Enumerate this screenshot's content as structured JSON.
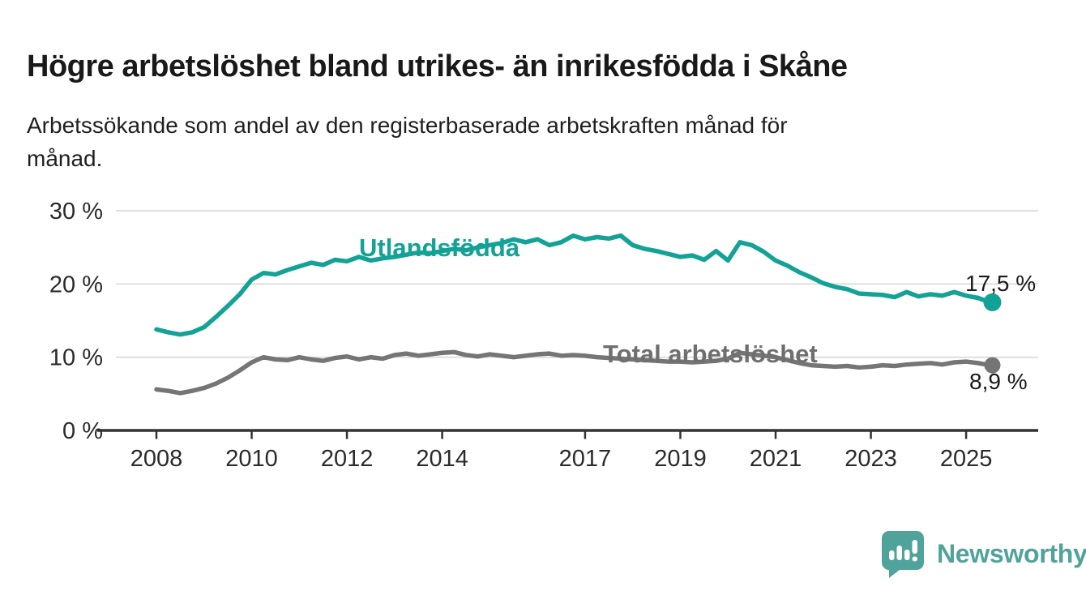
{
  "header": {
    "title": "Högre arbetslöshet bland utrikes- än inrikesfödda i Skåne",
    "subtitle": "Arbetssökande som andel av den registerbaserade arbetskraften månad för månad.",
    "subtitle_lines": [
      "Arbetssökande som andel av den registerbaserade arbetskraften månad för",
      "månad."
    ]
  },
  "colors": {
    "utlandsfodda": "#14a296",
    "total": "#757575",
    "grid": "#d9d9d9",
    "axis": "#333333",
    "tick_text": "#2b2b2b",
    "logo": "#4fa39b"
  },
  "chart_data": {
    "type": "line",
    "title": "Högre arbetslöshet bland utrikes- än inrikesfödda i Skåne",
    "subtitle": "Arbetssökande som andel av den registerbaserade arbetskraften månad för månad.",
    "xlabel": "",
    "ylabel": "",
    "ylim": [
      0,
      30
    ],
    "xlim": [
      2007.2,
      2026.3
    ],
    "grid": "horizontal",
    "legend_position": "inline-labels",
    "y_ticks": [
      {
        "value": 0,
        "label": "0 %"
      },
      {
        "value": 10,
        "label": "10 %"
      },
      {
        "value": 20,
        "label": "20 %"
      },
      {
        "value": 30,
        "label": "30 %"
      }
    ],
    "x_ticks": [
      {
        "value": 2008,
        "label": "2008"
      },
      {
        "value": 2010,
        "label": "2010"
      },
      {
        "value": 2012,
        "label": "2012"
      },
      {
        "value": 2014,
        "label": "2014"
      },
      {
        "value": 2017,
        "label": "2017"
      },
      {
        "value": 2019,
        "label": "2019"
      },
      {
        "value": 2021,
        "label": "2021"
      },
      {
        "value": 2023,
        "label": "2023"
      },
      {
        "value": 2025,
        "label": "2025"
      }
    ],
    "x": [
      2008.0,
      2008.25,
      2008.5,
      2008.75,
      2009.0,
      2009.25,
      2009.5,
      2009.75,
      2010.0,
      2010.25,
      2010.5,
      2010.75,
      2011.0,
      2011.25,
      2011.5,
      2011.75,
      2012.0,
      2012.25,
      2012.5,
      2012.75,
      2013.0,
      2013.25,
      2013.5,
      2013.75,
      2014.0,
      2014.25,
      2014.5,
      2014.75,
      2015.0,
      2015.25,
      2015.5,
      2015.75,
      2016.0,
      2016.25,
      2016.5,
      2016.75,
      2017.0,
      2017.25,
      2017.5,
      2017.75,
      2018.0,
      2018.25,
      2018.5,
      2018.75,
      2019.0,
      2019.25,
      2019.5,
      2019.75,
      2020.0,
      2020.25,
      2020.5,
      2020.75,
      2021.0,
      2021.25,
      2021.5,
      2021.75,
      2022.0,
      2022.25,
      2022.5,
      2022.75,
      2023.0,
      2023.25,
      2023.5,
      2023.75,
      2024.0,
      2024.25,
      2024.5,
      2024.75,
      2025.0,
      2025.25,
      2025.5
    ],
    "series": [
      {
        "name": "Utlandsfödda",
        "color": "#14a296",
        "end_value_label": "17,5 %",
        "values": [
          13.8,
          13.4,
          13.1,
          13.4,
          14.1,
          15.5,
          17.0,
          18.6,
          20.6,
          21.5,
          21.3,
          21.9,
          22.4,
          22.9,
          22.6,
          23.3,
          23.1,
          23.7,
          23.2,
          23.5,
          23.7,
          24.0,
          24.3,
          24.2,
          24.5,
          24.8,
          24.6,
          25.0,
          25.3,
          25.6,
          26.1,
          25.7,
          26.1,
          25.3,
          25.7,
          26.6,
          26.1,
          26.4,
          26.2,
          26.6,
          25.3,
          24.8,
          24.5,
          24.1,
          23.7,
          23.9,
          23.3,
          24.5,
          23.2,
          25.7,
          25.3,
          24.4,
          23.2,
          22.5,
          21.6,
          20.9,
          20.1,
          19.6,
          19.3,
          18.7,
          18.6,
          18.5,
          18.2,
          18.9,
          18.3,
          18.6,
          18.4,
          18.9,
          18.4,
          18.1,
          17.5
        ]
      },
      {
        "name": "Total arbetslöshet",
        "color": "#757575",
        "end_value_label": "8,9 %",
        "values": [
          5.6,
          5.4,
          5.1,
          5.4,
          5.8,
          6.4,
          7.2,
          8.2,
          9.3,
          10.0,
          9.7,
          9.6,
          10.0,
          9.7,
          9.5,
          9.9,
          10.1,
          9.7,
          10.0,
          9.8,
          10.3,
          10.5,
          10.2,
          10.4,
          10.6,
          10.7,
          10.3,
          10.1,
          10.4,
          10.2,
          10.0,
          10.2,
          10.4,
          10.5,
          10.2,
          10.3,
          10.2,
          10.0,
          9.9,
          9.8,
          9.7,
          9.6,
          9.5,
          9.4,
          9.4,
          9.3,
          9.4,
          9.5,
          9.8,
          10.6,
          10.4,
          10.2,
          10.0,
          9.6,
          9.2,
          8.9,
          8.8,
          8.7,
          8.8,
          8.6,
          8.7,
          8.9,
          8.8,
          9.0,
          9.1,
          9.2,
          9.0,
          9.3,
          9.4,
          9.2,
          8.9
        ]
      }
    ]
  },
  "annotations": {
    "utlandsfodda_label": "Utlandsfödda",
    "total_label": "Total arbetslöshet",
    "utlandsfodda_end": "17,5 %",
    "total_end": "8,9 %"
  },
  "branding": {
    "logo_text": "Newsworthy",
    "logo_icon": "bar-chart-speech-bubble-icon"
  }
}
